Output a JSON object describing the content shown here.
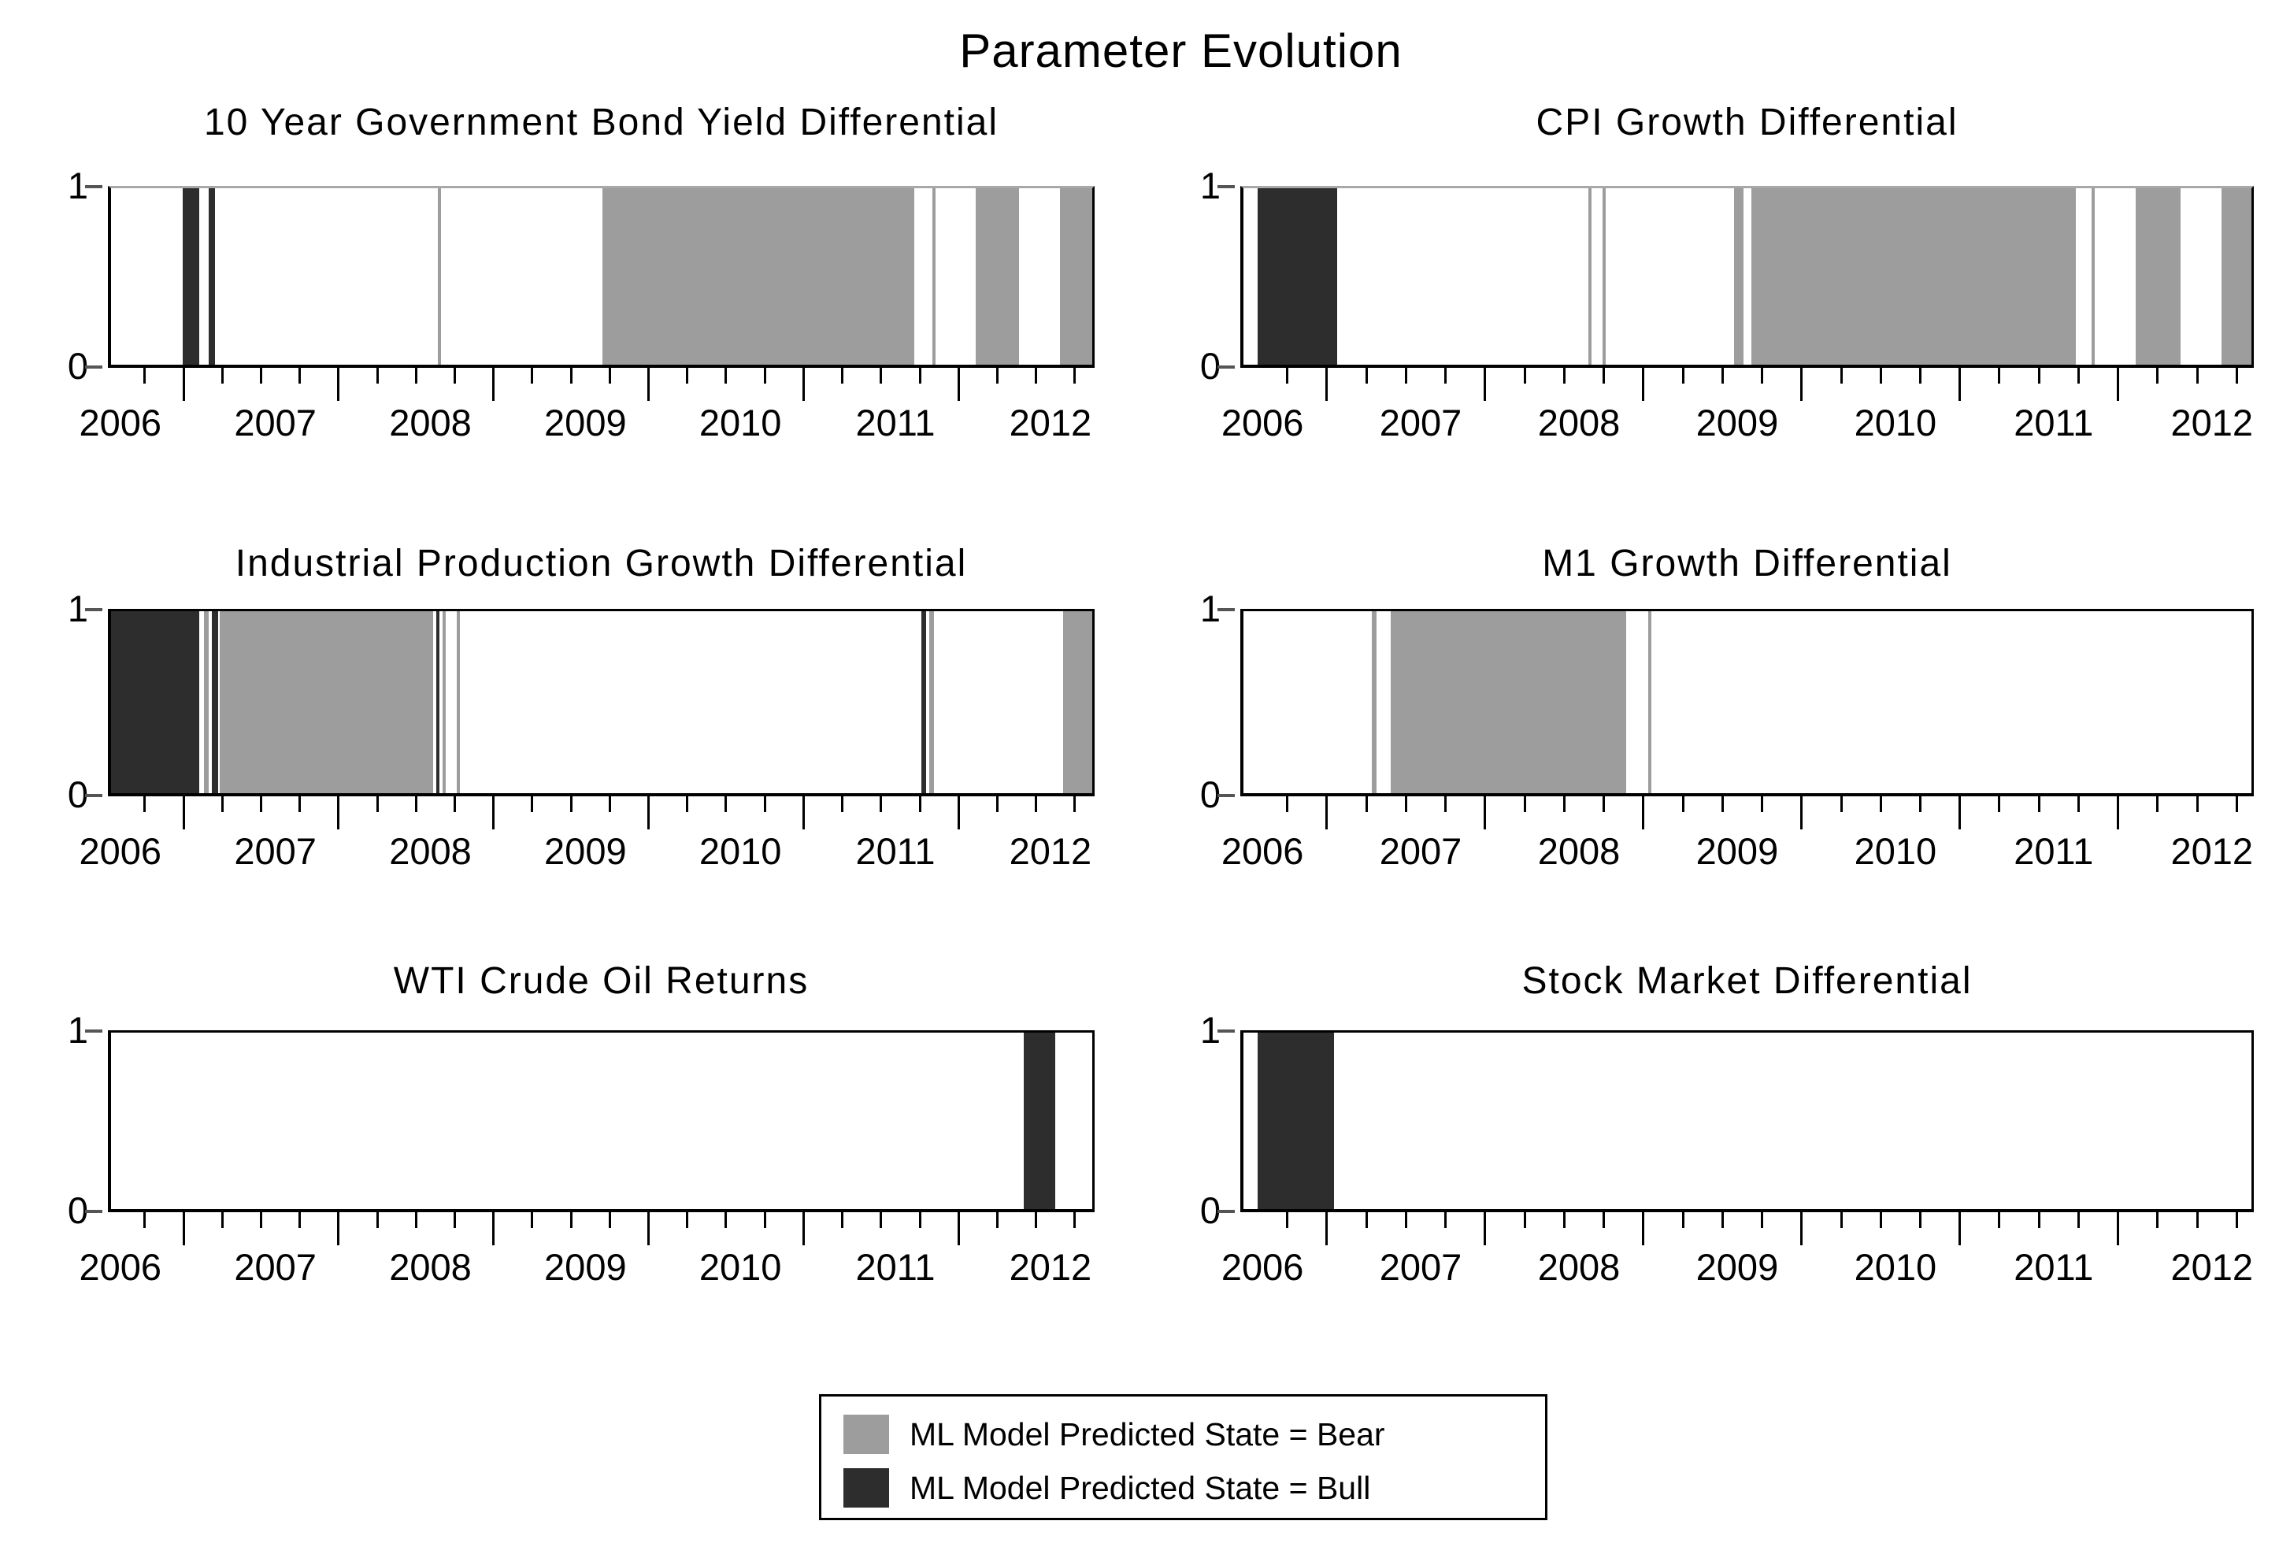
{
  "title": "Parameter Evolution",
  "y_axis": {
    "tick_labels": [
      "1",
      "0"
    ],
    "ylim": [
      0,
      1
    ]
  },
  "x_axis": {
    "year_labels": [
      "2006",
      "2007",
      "2008",
      "2009",
      "2010",
      "2011",
      "2012"
    ]
  },
  "legend": {
    "items": [
      {
        "label": "ML Model Predicted State = Bear",
        "state": "bear",
        "color": "#9d9d9d"
      },
      {
        "label": "ML Model Predicted State = Bull",
        "state": "bull",
        "color": "#2d2d2d"
      }
    ]
  },
  "chart_data": {
    "type": "area",
    "subtype": "binary-state-timeline",
    "title": "Parameter Evolution",
    "ylabel": "",
    "xlabel": "",
    "ylim": [
      0,
      1
    ],
    "y_ticks": [
      0,
      1
    ],
    "x_tick_years": [
      2006,
      2007,
      2008,
      2009,
      2010,
      2011,
      2012
    ],
    "minor_tick_step_years": 0.25,
    "minor_tick_phase": 0.15,
    "major_tick_phase": 0.4,
    "legend_position": "bottom-center",
    "grid": false,
    "states": {
      "bear": {
        "label": "ML Model Predicted State = Bear",
        "color": "#9d9d9d",
        "value": 1
      },
      "bull": {
        "label": "ML Model Predicted State = Bull",
        "color": "#2d2d2d",
        "value": 1
      }
    },
    "panels": [
      {
        "title": "10 Year Government Bond Yield Differential",
        "x_domain": [
          2005.94,
          2012.27
        ],
        "intervals": [
          {
            "state": "bull",
            "start": 2006.4,
            "end": 2006.51
          },
          {
            "state": "bull",
            "start": 2006.57,
            "end": 2006.61
          },
          {
            "state": "bear",
            "start": 2008.05,
            "end": 2008.07
          },
          {
            "state": "bear",
            "start": 2009.11,
            "end": 2011.12
          },
          {
            "state": "bear",
            "start": 2011.24,
            "end": 2011.26
          },
          {
            "state": "bear",
            "start": 2011.52,
            "end": 2011.8
          },
          {
            "state": "bear",
            "start": 2012.06,
            "end": 2012.27
          }
        ]
      },
      {
        "title": "CPI Growth Differential",
        "x_domain": [
          2005.88,
          2012.25
        ],
        "intervals": [
          {
            "state": "bull",
            "start": 2005.97,
            "end": 2006.47
          },
          {
            "state": "bear",
            "start": 2008.06,
            "end": 2008.08
          },
          {
            "state": "bear",
            "start": 2008.15,
            "end": 2008.17
          },
          {
            "state": "bear",
            "start": 2008.98,
            "end": 2009.04
          },
          {
            "state": "bear",
            "start": 2009.09,
            "end": 2011.14
          },
          {
            "state": "bear",
            "start": 2011.24,
            "end": 2011.26
          },
          {
            "state": "bear",
            "start": 2011.52,
            "end": 2011.8
          },
          {
            "state": "bear",
            "start": 2012.06,
            "end": 2012.25
          }
        ]
      },
      {
        "title": "Industrial Production Growth Differential",
        "x_domain": [
          2005.94,
          2012.27
        ],
        "intervals": [
          {
            "state": "bull",
            "start": 2005.94,
            "end": 2006.51
          },
          {
            "state": "bear",
            "start": 2006.54,
            "end": 2006.57
          },
          {
            "state": "bull",
            "start": 2006.59,
            "end": 2006.63
          },
          {
            "state": "bear",
            "start": 2006.64,
            "end": 2008.02
          },
          {
            "state": "bull",
            "start": 2008.04,
            "end": 2008.06
          },
          {
            "state": "bear",
            "start": 2008.08,
            "end": 2008.1
          },
          {
            "state": "bear",
            "start": 2008.17,
            "end": 2008.19
          },
          {
            "state": "bull",
            "start": 2011.17,
            "end": 2011.2
          },
          {
            "state": "bear",
            "start": 2011.22,
            "end": 2011.25
          },
          {
            "state": "bear",
            "start": 2012.08,
            "end": 2012.27
          }
        ]
      },
      {
        "title": "M1 Growth Differential",
        "x_domain": [
          2005.88,
          2012.25
        ],
        "intervals": [
          {
            "state": "bear",
            "start": 2006.69,
            "end": 2006.72
          },
          {
            "state": "bear",
            "start": 2006.81,
            "end": 2008.3
          },
          {
            "state": "bear",
            "start": 2008.44,
            "end": 2008.46
          }
        ]
      },
      {
        "title": "WTI Crude Oil Returns",
        "x_domain": [
          2005.94,
          2012.27
        ],
        "intervals": [
          {
            "state": "bull",
            "start": 2011.83,
            "end": 2012.03
          }
        ]
      },
      {
        "title": "Stock Market Differential",
        "x_domain": [
          2005.88,
          2012.25
        ],
        "intervals": [
          {
            "state": "bull",
            "start": 2005.97,
            "end": 2006.45
          }
        ]
      }
    ]
  }
}
